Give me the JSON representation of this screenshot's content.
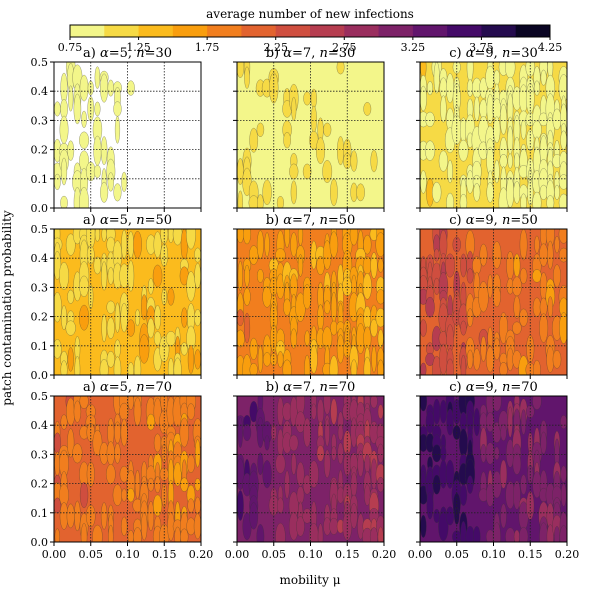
{
  "chart_data": {
    "type": "heatmap",
    "colorbar": {
      "title": "average number of new infections",
      "ticks": [
        "0.75",
        "1.25",
        "1.75",
        "2.25",
        "2.75",
        "3.25",
        "3.75",
        "4.25"
      ],
      "levels": [
        0.75,
        1.0,
        1.25,
        1.5,
        1.75,
        2.0,
        2.25,
        2.5,
        2.75,
        3.0,
        3.25,
        3.5,
        3.75,
        4.0,
        4.25
      ],
      "colors": [
        "#f3f68a",
        "#f6da45",
        "#fbbb1d",
        "#f99e0e",
        "#f17e1e",
        "#e2632f",
        "#cf4e3f",
        "#b63d50",
        "#9a2e5e",
        "#7d2268",
        "#61156c",
        "#440a68",
        "#240b4e",
        "#0a0523"
      ]
    },
    "xlabel": "mobility μ",
    "ylabel": "patch contamination probability",
    "xlim": [
      0,
      0.2
    ],
    "ylim": [
      0,
      0.5
    ],
    "x_ticks": [
      "0.00",
      "0.05",
      "0.10",
      "0.15",
      "0.20"
    ],
    "y_ticks": [
      "0.0",
      "0.1",
      "0.2",
      "0.3",
      "0.4",
      "0.5"
    ],
    "grid": true,
    "panels": [
      {
        "title_prefix": "a) ",
        "alpha": "5",
        "n": "30",
        "base_level": 0,
        "base_value": 0.7
      },
      {
        "title_prefix": "b) ",
        "alpha": "7",
        "n": "30",
        "base_level": 0,
        "base_value": 0.85
      },
      {
        "title_prefix": "c) ",
        "alpha": "9",
        "n": "30",
        "base_level": 1,
        "base_value": 1.05
      },
      {
        "title_prefix": "a) ",
        "alpha": "5",
        "n": "50",
        "base_level": 2,
        "base_value": 1.3
      },
      {
        "title_prefix": "b) ",
        "alpha": "7",
        "n": "50",
        "base_level": 4,
        "base_value": 1.8
      },
      {
        "title_prefix": "c) ",
        "alpha": "9",
        "n": "50",
        "base_level": 5,
        "base_value": 2.1
      },
      {
        "title_prefix": "a) ",
        "alpha": "5",
        "n": "70",
        "base_level": 5,
        "base_value": 2.05
      },
      {
        "title_prefix": "b) ",
        "alpha": "7",
        "n": "70",
        "base_level": 9,
        "base_value": 3.1
      },
      {
        "title_prefix": "c) ",
        "alpha": "9",
        "n": "70",
        "base_level": 10,
        "base_value": 3.35
      }
    ]
  }
}
